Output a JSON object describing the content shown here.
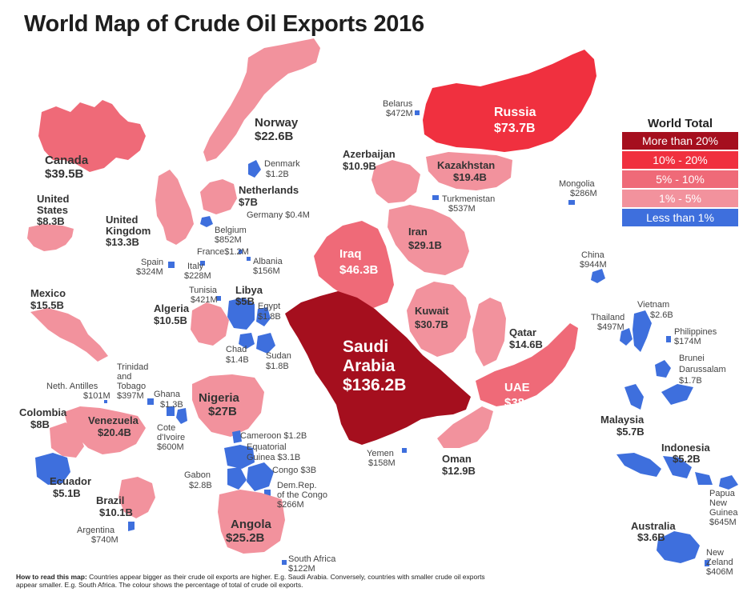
{
  "title": "World Map of Crude Oil Exports 2016",
  "legend": {
    "title": "World Total",
    "items": [
      {
        "label": "More than 20%",
        "color": "#a50f1e"
      },
      {
        "label": "10% - 20%",
        "color": "#f0303f"
      },
      {
        "label": "5% - 10%",
        "color": "#ef6a78"
      },
      {
        "label": "1% - 5%",
        "color": "#f2929d"
      },
      {
        "label": "Less than 1%",
        "color": "#3e6fdd"
      }
    ]
  },
  "howto": {
    "lead": "How to read this map:",
    "text": "Countries appear bigger as their crude oil exports are higher. E.g. Saudi Arabia. Conversely, countries with smaller crude oil exports appear smaller. E.g. South Africa. The colour shows the percentage of total of crude oil exports."
  },
  "countries": {
    "russia": {
      "name": "Russia",
      "value": "$73.7B"
    },
    "saudi": {
      "name1": "Saudi",
      "name2": "Arabia",
      "value": "$136.2B"
    },
    "canada": {
      "name": "Canada",
      "value": "$39.5B"
    },
    "norway": {
      "name": "Norway",
      "value": "$22.6B"
    },
    "iraq": {
      "name": "Iraq",
      "value": "$46.3B"
    },
    "iran": {
      "name": "Iran",
      "value": "$29.1B"
    },
    "kuwait": {
      "name": "Kuwait",
      "value": "$30.7B"
    },
    "uae": {
      "name": "UAE",
      "value": "$38.9B"
    },
    "nigeria": {
      "name": "Nigeria",
      "value": "$27B"
    },
    "angola": {
      "name": "Angola",
      "value": "$25.2B"
    },
    "venezuela": {
      "name": "Venezuela",
      "value": "$20.4B"
    },
    "kazakhstan": {
      "name": "Kazakhstan",
      "value": "$19.4B"
    },
    "mexico": {
      "name": "Mexico",
      "value": "$15.5B"
    },
    "qatar": {
      "name": "Qatar",
      "value": "$14.6B"
    },
    "uk": {
      "name1": "United",
      "name2": "Kingdom",
      "value": "$13.3B"
    },
    "oman": {
      "name": "Oman",
      "value": "$12.9B"
    },
    "azerbaijan": {
      "name": "Azerbaijan",
      "value": "$10.9B"
    },
    "algeria": {
      "name": "Algeria",
      "value": "$10.5B"
    },
    "brazil": {
      "name": "Brazil",
      "value": "$10.1B"
    },
    "us": {
      "name1": "United",
      "name2": "States",
      "value": "$8.3B"
    },
    "colombia": {
      "name": "Colombia",
      "value": "$8B"
    },
    "netherlands": {
      "name": "Netherlands",
      "value": "$7B"
    },
    "malaysia": {
      "name": "Malaysia",
      "value": "$5.7B"
    },
    "indonesia": {
      "name": "Indonesia",
      "value": "$5.2B"
    },
    "ecuador": {
      "name": "Ecuador",
      "value": "$5.1B"
    },
    "libya": {
      "name": "Libya",
      "value": "$5B"
    },
    "australia": {
      "name": "Australia",
      "value": "$3.6B"
    },
    "congo": {
      "name": "Congo $3B"
    },
    "eqguinea": {
      "name1": "Equatorial",
      "name2": "Guinea $3.1B"
    },
    "gabon": {
      "name": "Gabon",
      "value": "$2.8B"
    },
    "vietnam": {
      "name": "Vietnam",
      "value": "$2.6B"
    },
    "sudan": {
      "name": "Sudan",
      "value": "$1.8B"
    },
    "egypt": {
      "name": "Egypt",
      "value": "$1.8B"
    },
    "brunei": {
      "name1": "Brunei",
      "name2": "Darussalam",
      "value": "$1.7B"
    },
    "chad": {
      "name": "Chad",
      "value": "$1.4B"
    },
    "ghana": {
      "name": "Ghana",
      "value": "$1.3B"
    },
    "cameroon": {
      "name": "Cameroon $1.2B"
    },
    "denmark": {
      "name": "Denmark",
      "value": "$1.2B"
    },
    "france": {
      "name": "France$1.2M"
    },
    "belarus": {
      "name": "Belarus",
      "value": "$472M"
    },
    "turkmenistan": {
      "name": "Turkmenistan",
      "value": "$537M"
    },
    "mongolia": {
      "name": "Mongolia",
      "value": "$286M"
    },
    "china": {
      "name": "China",
      "value": "$944M"
    },
    "thailand": {
      "name": "Thailand",
      "value": "$497M"
    },
    "philippines": {
      "name": "Philippines",
      "value": "$174M"
    },
    "png": {
      "name1": "Papua",
      "name2": "New",
      "name3": "Guinea",
      "value": "$645M"
    },
    "nz": {
      "name1": "New",
      "name2": "Zeland",
      "value": "$406M"
    },
    "germany": {
      "name": "Germany $0.4M"
    },
    "belgium": {
      "name": "Belgium",
      "value": "$852M"
    },
    "albania": {
      "name": "Albania",
      "value": "$156M"
    },
    "spain": {
      "name": "Spain",
      "value": "$324M"
    },
    "italy": {
      "name": "Italy",
      "value": "$228M"
    },
    "tunisia": {
      "name": "Tunisia",
      "value": "$421M"
    },
    "yemen": {
      "name": "Yemen",
      "value": "$158M"
    },
    "southafrica": {
      "name": "South Africa",
      "value": "$122M"
    },
    "drc": {
      "name1": "Dem.Rep.",
      "name2": "of the Congo",
      "value": "$266M"
    },
    "cotedivoire": {
      "name1": "Cote",
      "name2": "d'Ivoire",
      "value": "$600M"
    },
    "trinidad": {
      "name1": "Trinidad",
      "name2": "and",
      "name3": "Tobago",
      "value": "$397M"
    },
    "antilles": {
      "name": "Neth. Antilles",
      "value": "$101M"
    },
    "argentina": {
      "name": "Argentina",
      "value": "$740M"
    }
  }
}
